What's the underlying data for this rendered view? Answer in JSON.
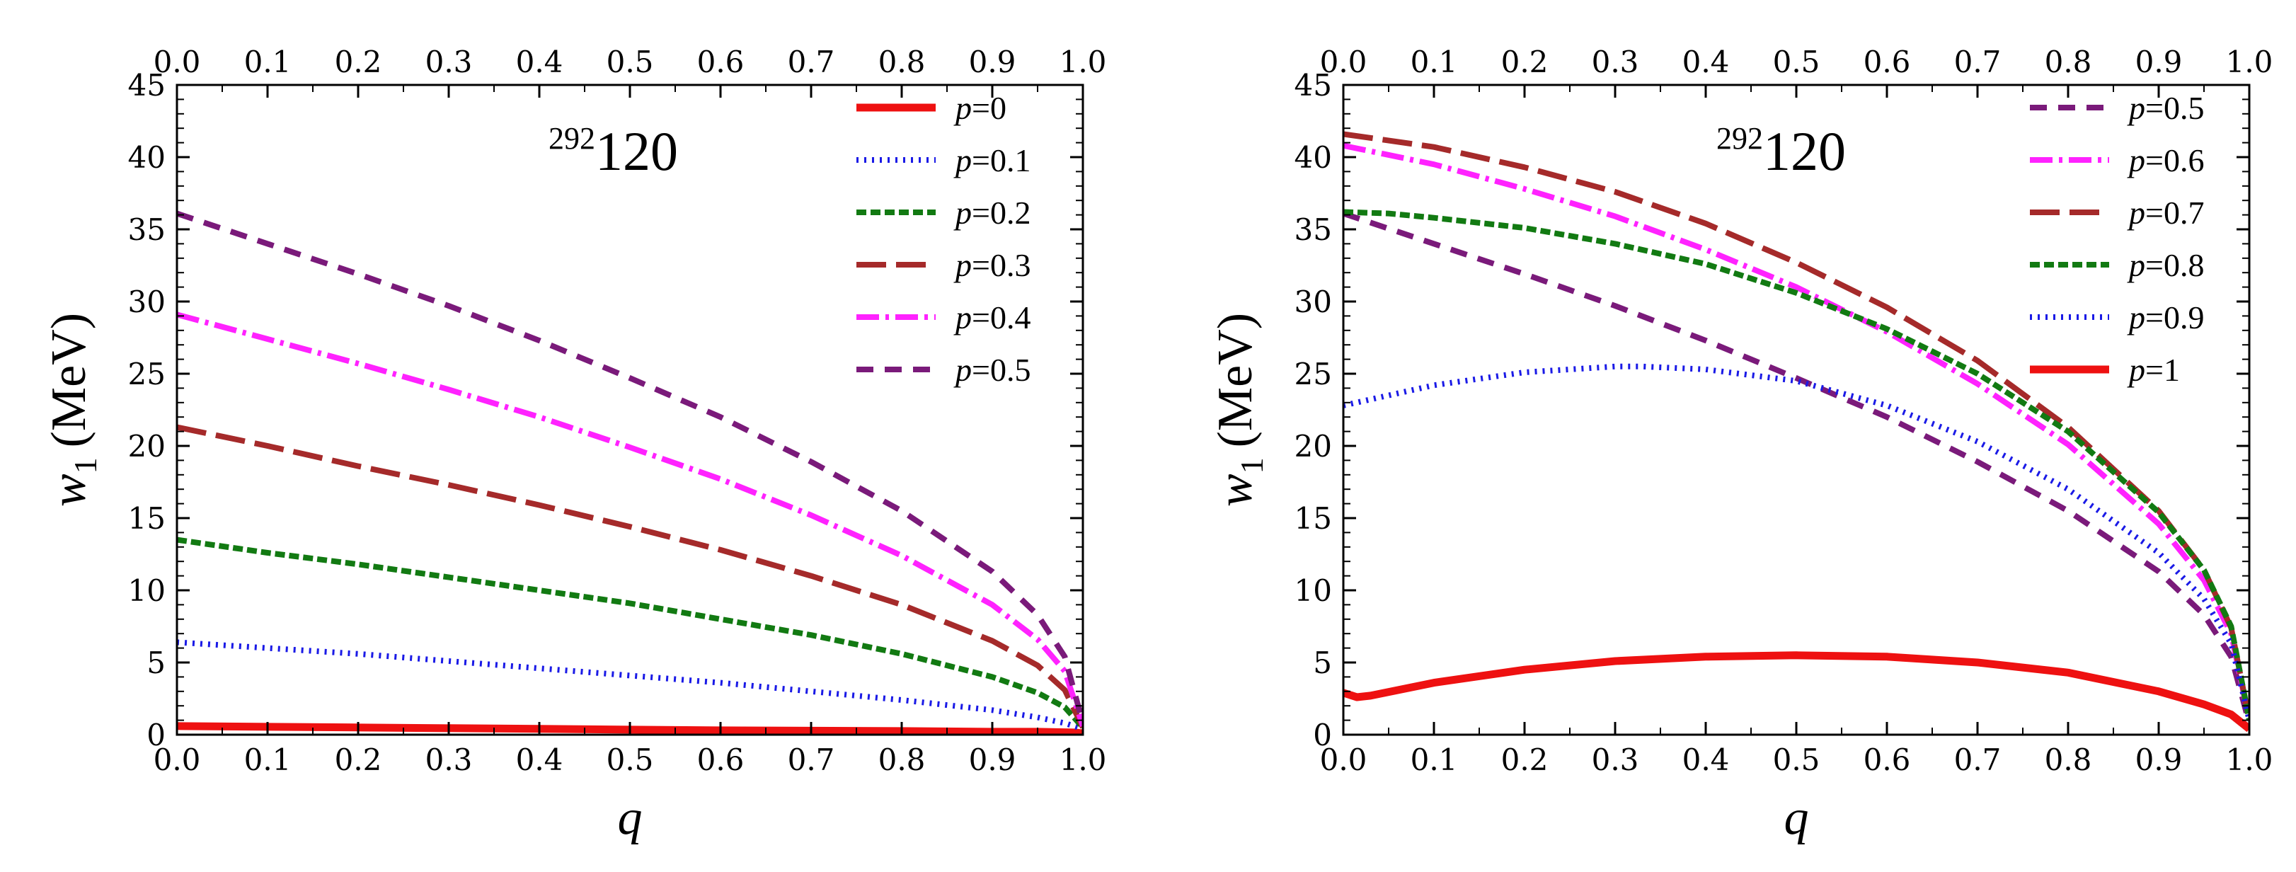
{
  "chart_data": [
    {
      "type": "line",
      "title": "",
      "annotation": {
        "mass": "292",
        "element": "120"
      },
      "xlabel": "q",
      "ylabel_symbol": "w",
      "ylabel_sub": "1",
      "ylabel_unit": "(MeV)",
      "xlim": [
        0,
        1
      ],
      "ylim": [
        0,
        45
      ],
      "xticks": [
        "0.0",
        "0.1",
        "0.2",
        "0.3",
        "0.4",
        "0.5",
        "0.6",
        "0.7",
        "0.8",
        "0.9",
        "1.0"
      ],
      "yticks": [
        "0",
        "5",
        "10",
        "15",
        "20",
        "25",
        "30",
        "35",
        "40",
        "45"
      ],
      "grid": false,
      "legend_position": "top-right",
      "series": [
        {
          "name": "p=0",
          "label_var": "p",
          "label_val": "=0",
          "color": "#ee1111",
          "style": "solid",
          "x": [
            0,
            0.2,
            0.4,
            0.6,
            0.8,
            0.9,
            0.95,
            0.99,
            1.0
          ],
          "values": [
            0.6,
            0.5,
            0.4,
            0.3,
            0.25,
            0.2,
            0.2,
            0.15,
            0.1
          ]
        },
        {
          "name": "p=0.1",
          "label_var": "p",
          "label_val": "=0.1",
          "color": "#1a1ae6",
          "style": "dot",
          "x": [
            0,
            0.1,
            0.2,
            0.3,
            0.4,
            0.5,
            0.6,
            0.7,
            0.8,
            0.9,
            0.95,
            0.98,
            1.0
          ],
          "values": [
            6.4,
            6.0,
            5.6,
            5.1,
            4.6,
            4.1,
            3.6,
            3.0,
            2.4,
            1.7,
            1.2,
            0.8,
            0.4
          ]
        },
        {
          "name": "p=0.2",
          "label_var": "p",
          "label_val": "=0.2",
          "color": "#127a12",
          "style": "dash-short",
          "x": [
            0,
            0.1,
            0.2,
            0.3,
            0.4,
            0.5,
            0.6,
            0.7,
            0.8,
            0.9,
            0.95,
            0.98,
            1.0
          ],
          "values": [
            13.5,
            12.6,
            11.8,
            10.9,
            10.0,
            9.1,
            8.0,
            6.9,
            5.6,
            4.0,
            2.9,
            1.9,
            0.5
          ]
        },
        {
          "name": "p=0.3",
          "label_var": "p",
          "label_val": "=0.3",
          "color": "#a52a2a",
          "style": "dash-long",
          "x": [
            0,
            0.1,
            0.2,
            0.3,
            0.4,
            0.5,
            0.6,
            0.7,
            0.8,
            0.9,
            0.95,
            0.98,
            1.0
          ],
          "values": [
            21.3,
            20.0,
            18.6,
            17.3,
            15.9,
            14.4,
            12.8,
            11.0,
            9.0,
            6.5,
            4.8,
            3.1,
            0.5
          ]
        },
        {
          "name": "p=0.4",
          "label_var": "p",
          "label_val": "=0.4",
          "color": "#ff22ff",
          "style": "dash-dot",
          "x": [
            0,
            0.1,
            0.2,
            0.3,
            0.4,
            0.5,
            0.6,
            0.7,
            0.8,
            0.9,
            0.95,
            0.98,
            1.0
          ],
          "values": [
            29.1,
            27.4,
            25.7,
            23.9,
            22.0,
            19.9,
            17.7,
            15.2,
            12.4,
            9.0,
            6.6,
            4.4,
            0.6
          ]
        },
        {
          "name": "p=0.5",
          "label_var": "p",
          "label_val": "=0.5",
          "color": "#7a1a7a",
          "style": "dash-med",
          "x": [
            0,
            0.1,
            0.2,
            0.3,
            0.4,
            0.5,
            0.6,
            0.7,
            0.8,
            0.9,
            0.95,
            0.98,
            1.0
          ],
          "values": [
            36.1,
            34.0,
            31.9,
            29.7,
            27.3,
            24.7,
            22.0,
            18.9,
            15.5,
            11.3,
            8.3,
            5.4,
            0.8
          ]
        }
      ]
    },
    {
      "type": "line",
      "title": "",
      "annotation": {
        "mass": "292",
        "element": "120"
      },
      "xlabel": "q",
      "ylabel_symbol": "w",
      "ylabel_sub": "1",
      "ylabel_unit": "(MeV)",
      "xlim": [
        0,
        1
      ],
      "ylim": [
        0,
        45
      ],
      "xticks": [
        "0.0",
        "0.1",
        "0.2",
        "0.3",
        "0.4",
        "0.5",
        "0.6",
        "0.7",
        "0.8",
        "0.9",
        "1.0"
      ],
      "yticks": [
        "0",
        "5",
        "10",
        "15",
        "20",
        "25",
        "30",
        "35",
        "40",
        "45"
      ],
      "grid": false,
      "legend_position": "top-right",
      "series": [
        {
          "name": "p=0.5",
          "label_var": "p",
          "label_val": "=0.5",
          "color": "#7a1a7a",
          "style": "dash-med",
          "x": [
            0,
            0.1,
            0.2,
            0.3,
            0.4,
            0.5,
            0.6,
            0.7,
            0.8,
            0.9,
            0.95,
            0.98,
            1.0
          ],
          "values": [
            36.1,
            34.0,
            31.9,
            29.7,
            27.3,
            24.7,
            22.0,
            18.9,
            15.5,
            11.3,
            8.3,
            5.4,
            0.8
          ]
        },
        {
          "name": "p=0.6",
          "label_var": "p",
          "label_val": "=0.6",
          "color": "#ff22ff",
          "style": "dash-dot",
          "x": [
            0,
            0.1,
            0.2,
            0.3,
            0.4,
            0.5,
            0.6,
            0.7,
            0.8,
            0.9,
            0.95,
            0.98,
            1.0
          ],
          "values": [
            40.8,
            39.5,
            37.8,
            35.9,
            33.6,
            31.0,
            27.9,
            24.3,
            20.1,
            14.6,
            10.7,
            7.0,
            1.0
          ]
        },
        {
          "name": "p=0.7",
          "label_var": "p",
          "label_val": "=0.7",
          "color": "#a52a2a",
          "style": "dash-long",
          "x": [
            0,
            0.1,
            0.2,
            0.3,
            0.4,
            0.5,
            0.6,
            0.7,
            0.8,
            0.9,
            0.95,
            0.98,
            1.0
          ],
          "values": [
            41.6,
            40.7,
            39.3,
            37.6,
            35.4,
            32.7,
            29.6,
            25.9,
            21.3,
            15.5,
            11.4,
            7.4,
            1.0
          ]
        },
        {
          "name": "p=0.8",
          "label_var": "p",
          "label_val": "=0.8",
          "color": "#127a12",
          "style": "dash-short",
          "x": [
            0,
            0.05,
            0.1,
            0.2,
            0.3,
            0.4,
            0.5,
            0.6,
            0.7,
            0.8,
            0.9,
            0.95,
            0.98,
            1.0
          ],
          "values": [
            36.2,
            36.1,
            35.8,
            35.1,
            34.0,
            32.6,
            30.6,
            28.1,
            25.0,
            21.0,
            15.4,
            11.4,
            7.5,
            1.0
          ]
        },
        {
          "name": "p=0.9",
          "label_var": "p",
          "label_val": "=0.9",
          "color": "#1a1ae6",
          "style": "dot",
          "x": [
            0,
            0.1,
            0.2,
            0.3,
            0.33,
            0.4,
            0.5,
            0.6,
            0.7,
            0.8,
            0.9,
            0.95,
            0.98,
            1.0
          ],
          "values": [
            22.8,
            24.2,
            25.1,
            25.5,
            25.5,
            25.3,
            24.5,
            22.8,
            20.3,
            17.0,
            12.6,
            9.4,
            6.3,
            1.0
          ]
        },
        {
          "name": "p=1",
          "label_var": "p",
          "label_val": "=1",
          "color": "#ee1111",
          "style": "solid",
          "x": [
            0,
            0.015,
            0.03,
            0.1,
            0.2,
            0.3,
            0.4,
            0.5,
            0.6,
            0.7,
            0.8,
            0.9,
            0.95,
            0.98,
            1.0
          ],
          "values": [
            2.9,
            2.6,
            2.7,
            3.6,
            4.5,
            5.1,
            5.4,
            5.5,
            5.4,
            5.0,
            4.3,
            3.0,
            2.1,
            1.4,
            0.4
          ]
        }
      ]
    }
  ]
}
